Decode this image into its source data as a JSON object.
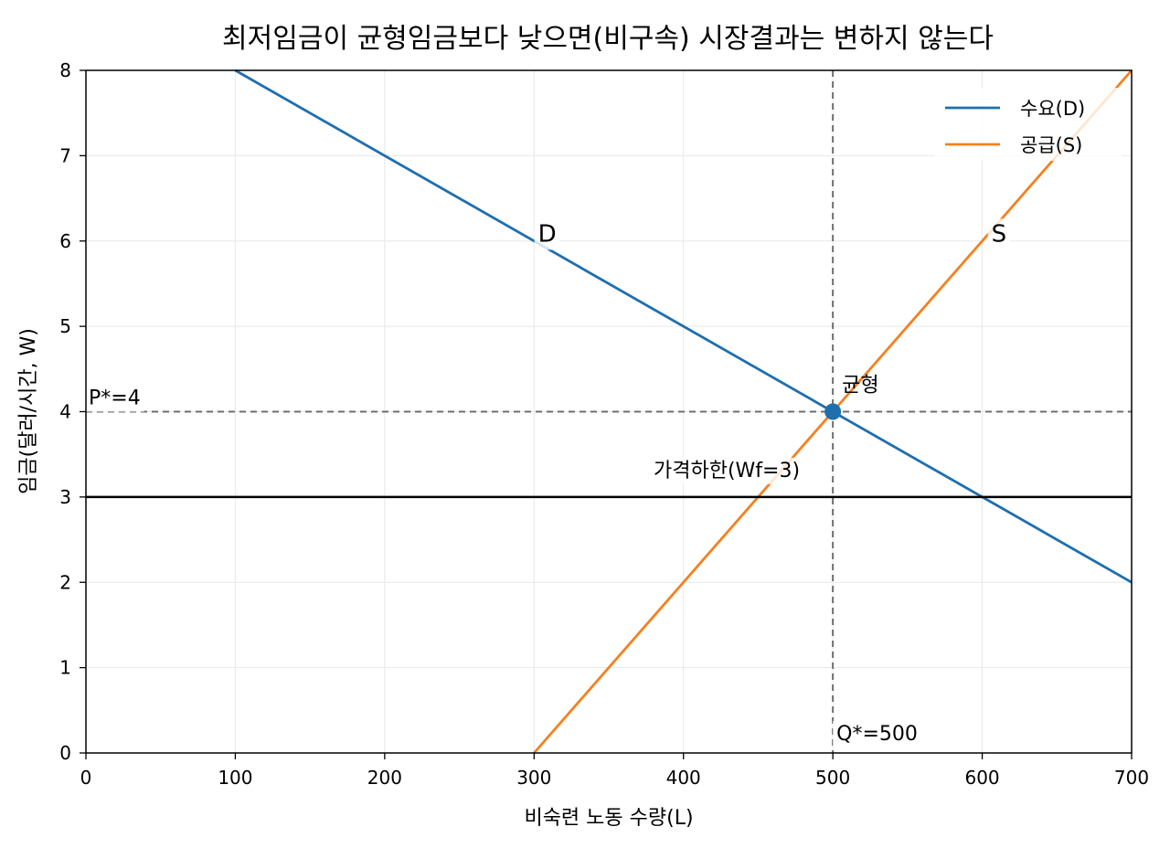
{
  "chart_data": {
    "type": "line",
    "title": "최저임금이 균형임금보다 낮으면(비구속) 시장결과는 변하지 않는다",
    "xlabel": "비숙련 노동 수량(L)",
    "ylabel": "임금(달러/시간, W)",
    "xlim": [
      0,
      700
    ],
    "ylim": [
      0,
      8
    ],
    "xticks": [
      0,
      100,
      200,
      300,
      400,
      500,
      600,
      700
    ],
    "yticks": [
      0,
      1,
      2,
      3,
      4,
      5,
      6,
      7,
      8
    ],
    "grid": true,
    "legend_position": "top-right",
    "colors": {
      "demand": "#1f6fad",
      "supply": "#f5801e",
      "reference": "#6e6e6e",
      "price_floor": "#000000"
    },
    "series": [
      {
        "name": "수요(D)",
        "x": [
          100,
          700
        ],
        "y": [
          8,
          2
        ]
      },
      {
        "name": "공급(S)",
        "x": [
          300,
          700
        ],
        "y": [
          0,
          8
        ]
      }
    ],
    "curve_labels": [
      {
        "text": "D",
        "x": 310,
        "y": 6.1
      },
      {
        "text": "S",
        "x": 610,
        "y": 6.1
      }
    ],
    "price_floor": {
      "label": "가격하한(Wf=3)",
      "y": 3
    },
    "equilibrium": {
      "label": "균형",
      "x": 500,
      "y": 4
    },
    "reference_labels": {
      "price": "P*=4",
      "quantity": "Q*=500"
    }
  }
}
